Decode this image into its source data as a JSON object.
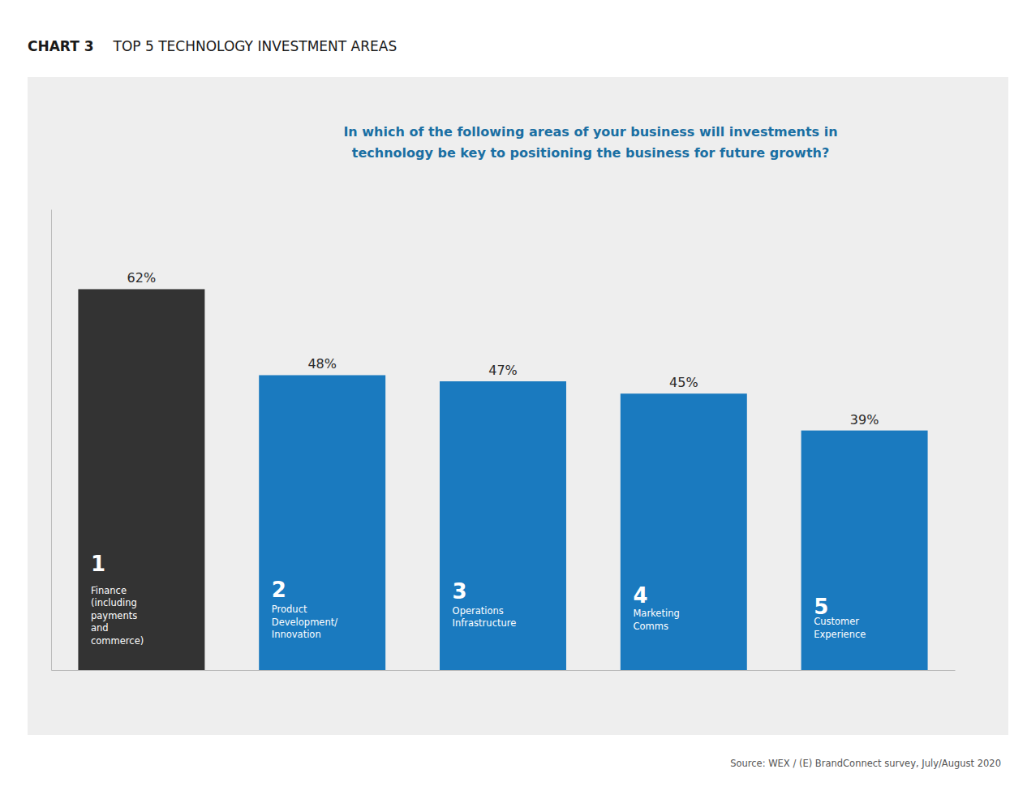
{
  "chart_data": {
    "type": "bar",
    "title": "TOP 5 TECHNOLOGY INVESTMENT AREAS",
    "subtitle": "In which of the following areas of your business will investments in\ntechnology be key to positioning the business for future growth?",
    "annotations": [
      "CHART 3",
      "Source: WEX / (E) BrandConnect survey, July/August 2020"
    ],
    "categories": [
      "Finance\n(including\npayments\nand\ncommerce)",
      "Product\nDevelopment/\nInnovation",
      "Operations\nInfrastructure",
      "Marketing\nComms",
      "Customer\nExperience"
    ],
    "ranks": [
      "1",
      "2",
      "3",
      "4",
      "5"
    ],
    "values": [
      62,
      48,
      47,
      45,
      39
    ],
    "value_labels": [
      "62%",
      "48%",
      "47%",
      "45%",
      "39%"
    ],
    "colors": [
      "#333333",
      "#1a7abf",
      "#1a7abf",
      "#1a7abf",
      "#1a7abf"
    ],
    "ylim": [
      0,
      75
    ],
    "data_labels": true,
    "tick_labels": false
  }
}
